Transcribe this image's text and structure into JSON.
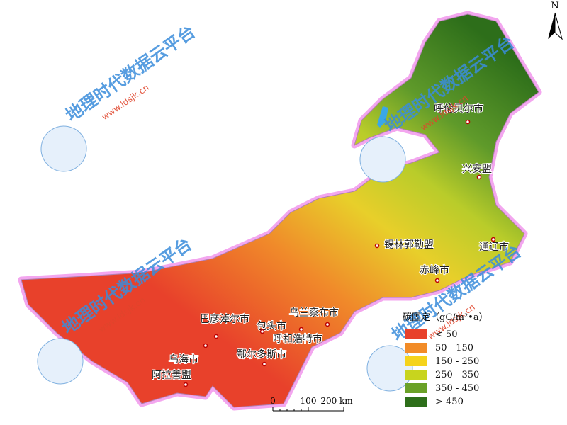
{
  "north": "N",
  "cities": [
    "呼伦贝尔市",
    "兴安盟",
    "锡林郭勒盟",
    "通辽市",
    "赤峰市",
    "乌兰察布市",
    "巴彦淖尔市",
    "包头市",
    "呼和浩特市",
    "鄂尔多斯市",
    "乌海市",
    "阿拉善盟"
  ],
  "legend": {
    "title": "碳固定（gC/m²•a）",
    "items": [
      {
        "label": "< 50",
        "color": "#e8412b"
      },
      {
        "label": "50 - 150",
        "color": "#f28c28"
      },
      {
        "label": "150 - 250",
        "color": "#f5d31c"
      },
      {
        "label": "250 - 350",
        "color": "#c8d41e"
      },
      {
        "label": "350 - 450",
        "color": "#6aa127"
      },
      {
        "label": "> 450",
        "color": "#2d6e1a"
      }
    ]
  },
  "scale_bar": [
    "0",
    "100",
    "200 km"
  ],
  "watermark": {
    "name": "地理时代数据云平台",
    "url": "www.ldsjk.cn"
  }
}
